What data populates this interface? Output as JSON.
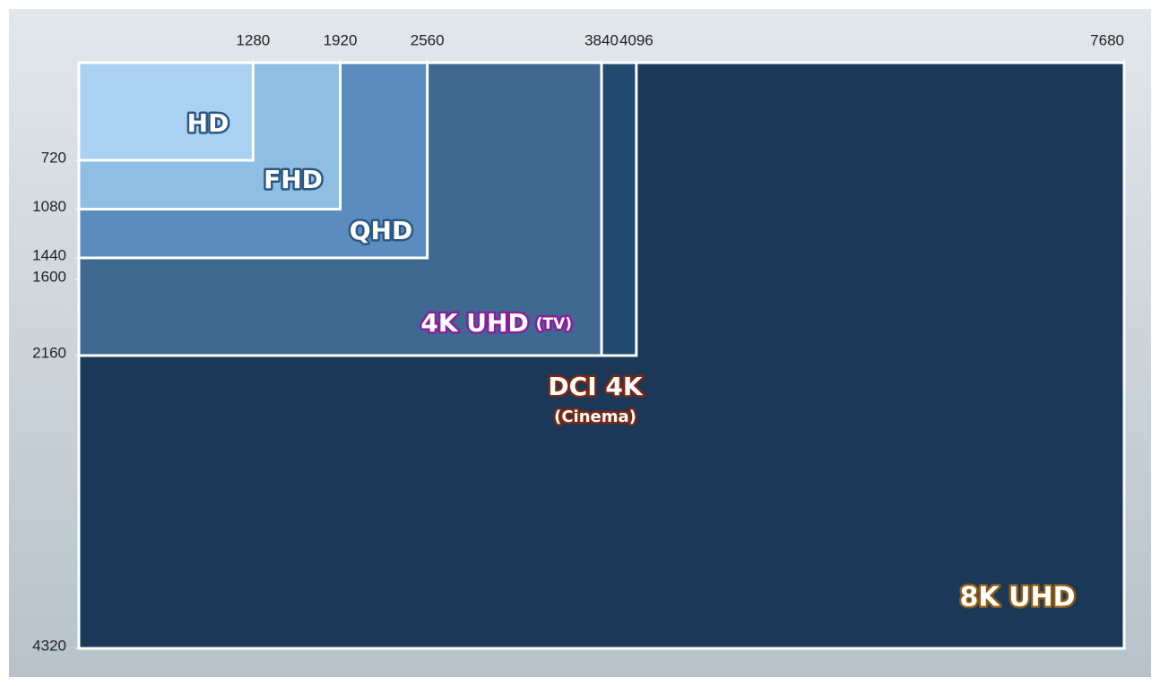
{
  "chart_data": {
    "type": "rectangles",
    "xlim": [
      0,
      7680
    ],
    "ylim": [
      0,
      4320
    ],
    "xticks": [
      1280,
      1920,
      2560,
      3840,
      4096,
      7680
    ],
    "yticks": [
      720,
      1080,
      1440,
      1600,
      2160,
      4320
    ],
    "series": [
      {
        "name": "8K UHD",
        "width": 7680,
        "height": 4320,
        "color": "#1b3858",
        "label_color": "#8a5a14"
      },
      {
        "name": "DCI 4K",
        "note": "(Cinema)",
        "width": 4096,
        "height": 2160,
        "color": "#22496f",
        "label_color": "#7a2812"
      },
      {
        "name": "4K UHD",
        "note": "(TV)",
        "width": 3840,
        "height": 2160,
        "color": "#3e6890",
        "label_color": "#8a1d9c"
      },
      {
        "name": "QHD",
        "width": 2560,
        "height": 1440,
        "color": "#5b8cbe",
        "label_color": "#2b5684"
      },
      {
        "name": "FHD",
        "width": 1920,
        "height": 1080,
        "color": "#8fbee4",
        "label_color": "#2b5684"
      },
      {
        "name": "HD",
        "width": 1280,
        "height": 720,
        "color": "#aad1f1",
        "label_color": "#2b5684"
      }
    ]
  }
}
